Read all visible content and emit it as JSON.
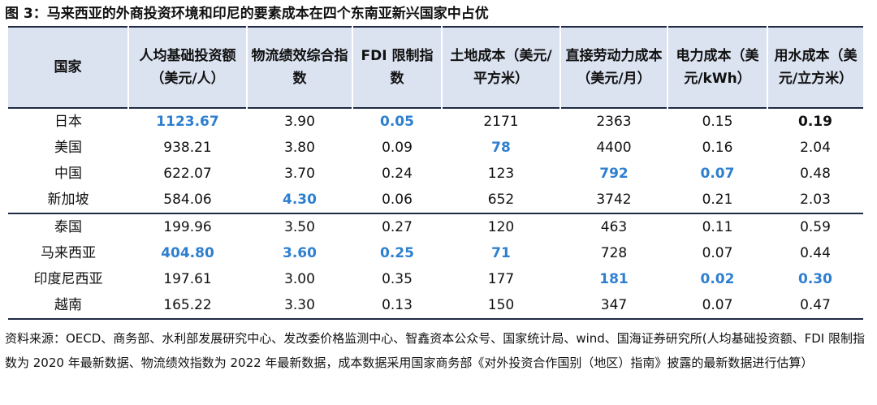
{
  "caption": "图 3：马来西亚的外商投资环境和印尼的要素成本在四个东南亚新兴国家中占优",
  "columns": [
    "国家",
    "人均基础投资额（美元/人）",
    "物流绩效综合指数",
    "FDI 限制指数",
    "土地成本（美元/平方米）",
    "直接劳动力成本（美元/月）",
    "电力成本（美元/kWh）",
    "用水成本（美元/立方米）"
  ],
  "rows": [
    {
      "country": "日本",
      "values": [
        "1123.67",
        "3.90",
        "0.05",
        "2171",
        "2363",
        "0.15",
        "0.19"
      ]
    },
    {
      "country": "美国",
      "values": [
        "938.21",
        "3.80",
        "0.09",
        "78",
        "4400",
        "0.16",
        "2.04"
      ]
    },
    {
      "country": "中国",
      "values": [
        "622.07",
        "3.70",
        "0.24",
        "123",
        "792",
        "0.07",
        "0.48"
      ]
    },
    {
      "country": "新加坡",
      "values": [
        "584.06",
        "4.30",
        "0.06",
        "652",
        "3742",
        "0.21",
        "2.03"
      ]
    },
    {
      "country": "泰国",
      "values": [
        "199.96",
        "3.50",
        "0.27",
        "120",
        "463",
        "0.11",
        "0.59"
      ]
    },
    {
      "country": "马来西亚",
      "values": [
        "404.80",
        "3.60",
        "0.25",
        "71",
        "728",
        "0.07",
        "0.44"
      ]
    },
    {
      "country": "印度尼西亚",
      "values": [
        "197.61",
        "3.00",
        "0.35",
        "177",
        "181",
        "0.02",
        "0.30"
      ]
    },
    {
      "country": "越南",
      "values": [
        "165.22",
        "3.30",
        "0.13",
        "150",
        "347",
        "0.07",
        "0.47"
      ]
    }
  ],
  "highlight_color": "#2e7fcf",
  "source_note": "资料来源：OECD、商务部、水利部发展研究中心、发改委价格监测中心、智鑫资本公众号、国家统计局、wind、国海证券研究所(人均基础投资额、FDI 限制指数为 2020 年最新数据、物流绩效指数为 2022 年最新数据，成本数据采用国家商务部《对外投资合作国别（地区）指南》披露的最新数据进行估算）"
}
